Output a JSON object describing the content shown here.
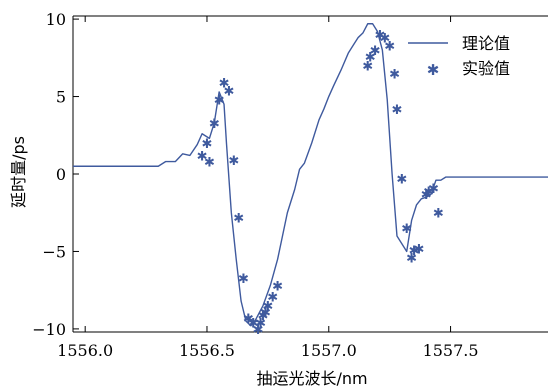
{
  "chart_data": {
    "type": "line",
    "xlabel": "抽运光波长/nm",
    "ylabel": "延时量/ps",
    "xlim": [
      1555.95,
      1557.9
    ],
    "ylim": [
      -10.2,
      10.2
    ],
    "x_ticks": [
      1556.0,
      1556.5,
      1557.0,
      1557.5
    ],
    "x_tick_labels": [
      "1556.0",
      "1556.5",
      "1557.0",
      "1557.5"
    ],
    "y_ticks": [
      10,
      5,
      0,
      -5,
      -10
    ],
    "y_tick_labels": [
      "10",
      "5",
      "0",
      "−5",
      "−10"
    ],
    "legend_position": "top-right",
    "series": [
      {
        "name": "理论值",
        "kind": "line",
        "color": "#3f5a9e",
        "x": [
          1555.95,
          1556.3,
          1556.33,
          1556.37,
          1556.4,
          1556.43,
          1556.46,
          1556.48,
          1556.51,
          1556.53,
          1556.55,
          1556.57,
          1556.58,
          1556.6,
          1556.62,
          1556.64,
          1556.66,
          1556.68,
          1556.7,
          1556.73,
          1556.76,
          1556.79,
          1556.81,
          1556.83,
          1556.86,
          1556.88,
          1556.9,
          1556.93,
          1556.96,
          1556.98,
          1557.0,
          1557.02,
          1557.05,
          1557.08,
          1557.1,
          1557.12,
          1557.14,
          1557.16,
          1557.18,
          1557.2,
          1557.22,
          1557.24,
          1557.26,
          1557.28,
          1557.3,
          1557.32,
          1557.34,
          1557.36,
          1557.38,
          1557.4,
          1557.42,
          1557.44,
          1557.46,
          1557.48,
          1557.55,
          1557.9
        ],
        "y": [
          0.5,
          0.5,
          0.8,
          0.8,
          1.3,
          1.2,
          1.9,
          2.6,
          2.3,
          3.3,
          5.3,
          4.5,
          2.0,
          -2.5,
          -5.5,
          -8.2,
          -9.5,
          -9.8,
          -9.4,
          -8.5,
          -7.2,
          -5.5,
          -4.0,
          -2.5,
          -1.0,
          0.3,
          0.7,
          2.0,
          3.5,
          4.2,
          5.0,
          5.7,
          6.7,
          7.8,
          8.3,
          8.8,
          9.1,
          9.7,
          9.7,
          9.2,
          8.0,
          4.8,
          0.0,
          -4.0,
          -4.5,
          -5.0,
          -3.0,
          -2.0,
          -1.6,
          -1.5,
          -1.3,
          -0.4,
          -0.4,
          -0.2,
          -0.2,
          -0.2
        ]
      },
      {
        "name": "实验值",
        "kind": "scatter",
        "color": "#3f5a9e",
        "x": [
          1556.48,
          1556.5,
          1556.51,
          1556.53,
          1556.55,
          1556.57,
          1556.59,
          1556.61,
          1556.63,
          1556.65,
          1556.67,
          1556.69,
          1556.71,
          1556.72,
          1556.73,
          1556.74,
          1556.75,
          1556.77,
          1556.79,
          1557.16,
          1557.17,
          1557.19,
          1557.21,
          1557.23,
          1557.25,
          1557.27,
          1557.28,
          1557.3,
          1557.32,
          1557.34,
          1557.35,
          1557.37,
          1557.4,
          1557.41,
          1557.43,
          1557.45
        ],
        "y": [
          1.2,
          2.0,
          0.8,
          3.3,
          4.8,
          5.9,
          5.4,
          0.9,
          -2.8,
          -6.7,
          -9.3,
          -9.6,
          -10.0,
          -9.6,
          -9.1,
          -8.9,
          -8.5,
          -7.9,
          -7.2,
          7.0,
          7.6,
          8.0,
          9.0,
          8.8,
          8.3,
          6.5,
          4.2,
          -0.3,
          -3.5,
          -5.4,
          -4.9,
          -4.8,
          -1.3,
          -1.1,
          -0.9,
          -2.5
        ]
      }
    ]
  }
}
